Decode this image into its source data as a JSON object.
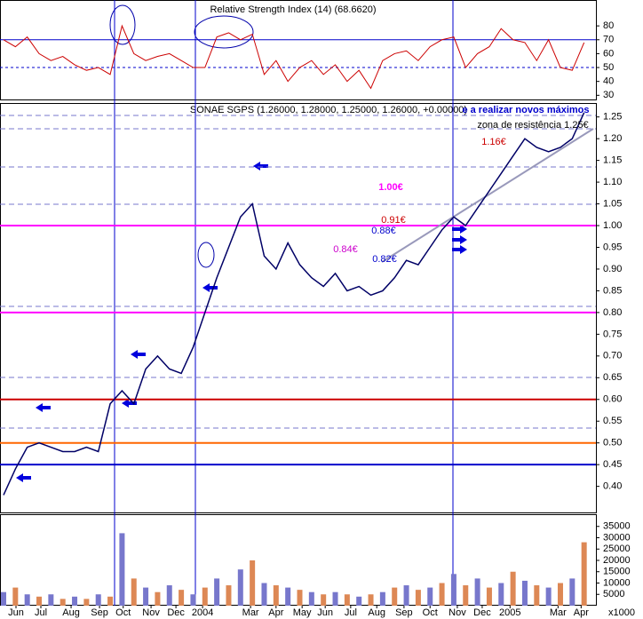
{
  "chart_data": {
    "type": "stock-panels",
    "title": "SONAE SGPS (1.26000, 1.28000, 1.25000, 1.26000, +0.00000)",
    "rsi_title": "Relative Strength Index (14) (68.6620)",
    "volume_unit": "x1000",
    "x": [
      0,
      2,
      4,
      6,
      8,
      10,
      12,
      14,
      16,
      18,
      20,
      22,
      24,
      26,
      28,
      30,
      32,
      34,
      36,
      38,
      40,
      42,
      44,
      46,
      48,
      50,
      52,
      54,
      56,
      58,
      60,
      62,
      64,
      66,
      68,
      70,
      72,
      74,
      76,
      78,
      80,
      82,
      84,
      86,
      88,
      90,
      92,
      94,
      96,
      98
    ],
    "xlim": [
      0,
      100
    ],
    "xticks": [
      {
        "value": 2.1,
        "label": "Jun"
      },
      {
        "value": 6.3,
        "label": "Jul"
      },
      {
        "value": 11.4,
        "label": "Aug"
      },
      {
        "value": 16.2,
        "label": "Sep"
      },
      {
        "value": 20.2,
        "label": "Oct"
      },
      {
        "value": 24.9,
        "label": "Nov"
      },
      {
        "value": 29.1,
        "label": "Dec"
      },
      {
        "value": 33.6,
        "label": "2004"
      },
      {
        "value": 41.7,
        "label": "Mar"
      },
      {
        "value": 46,
        "label": "Apr"
      },
      {
        "value": 50.4,
        "label": "May"
      },
      {
        "value": 54.3,
        "label": "Jun"
      },
      {
        "value": 58.6,
        "label": "Jul"
      },
      {
        "value": 63,
        "label": "Aug"
      },
      {
        "value": 67.6,
        "label": "Sep"
      },
      {
        "value": 72,
        "label": "Oct"
      },
      {
        "value": 76.6,
        "label": "Nov"
      },
      {
        "value": 80.8,
        "label": "Dec"
      },
      {
        "value": 85.5,
        "label": "2005"
      },
      {
        "value": 93.6,
        "label": "Mar"
      },
      {
        "value": 97.5,
        "label": "Apr"
      }
    ],
    "rsi": {
      "color": "#cc0000",
      "values": [
        70,
        65,
        72,
        60,
        55,
        58,
        52,
        48,
        50,
        45,
        80,
        60,
        55,
        58,
        60,
        55,
        50,
        50,
        72,
        75,
        70,
        74,
        45,
        55,
        40,
        50,
        55,
        45,
        52,
        40,
        48,
        35,
        55,
        60,
        62,
        55,
        65,
        70,
        72,
        50,
        60,
        65,
        78,
        70,
        68,
        55,
        70,
        50,
        48,
        68
      ],
      "ylim": [
        27,
        98
      ],
      "yticks": [
        30,
        40,
        50,
        60,
        70,
        80
      ],
      "levels": [
        70,
        50
      ]
    },
    "price": {
      "color": "#000066",
      "values": [
        0.38,
        0.44,
        0.49,
        0.5,
        0.49,
        0.48,
        0.48,
        0.49,
        0.48,
        0.59,
        0.62,
        0.59,
        0.67,
        0.7,
        0.67,
        0.66,
        0.72,
        0.8,
        0.88,
        0.95,
        1.02,
        1.05,
        0.93,
        0.9,
        0.96,
        0.91,
        0.88,
        0.86,
        0.89,
        0.85,
        0.86,
        0.84,
        0.85,
        0.88,
        0.92,
        0.91,
        0.95,
        0.99,
        1.02,
        1.0,
        1.04,
        1.08,
        1.12,
        1.16,
        1.2,
        1.18,
        1.17,
        1.18,
        1.2,
        1.26
      ],
      "ylim": [
        0.34,
        1.28
      ],
      "yticks": [
        1.25,
        {
          "value": 1.2,
          "label": "1.20"
        },
        1.15,
        {
          "value": 1.1,
          "label": "1.10"
        },
        1.05,
        {
          "value": 1,
          "label": "1.00"
        },
        0.95,
        {
          "value": 0.9,
          "label": "0.90"
        },
        0.85,
        {
          "value": 0.8,
          "label": "0.80"
        },
        0.75,
        {
          "value": 0.7,
          "label": "0.70"
        },
        0.65,
        {
          "value": 0.6,
          "label": "0.60"
        },
        0.55,
        {
          "value": 0.5,
          "label": "0.50"
        },
        0.45,
        {
          "value": 0.4,
          "label": "0.40"
        }
      ],
      "levels": [
        {
          "value": 1.0,
          "color": "#ff00ff"
        },
        {
          "value": 0.8,
          "color": "#ff00ff"
        },
        {
          "value": 0.45,
          "color": "#0000cc"
        },
        {
          "value": 0.5,
          "color": "#ff6600"
        },
        {
          "value": 0.6,
          "color": "#cc0000"
        }
      ],
      "annotations": [
        "e a realizar novos máximos",
        "zona de resistência 1.25€",
        "1.16€",
        "1.00€",
        "0.91€",
        "0.88€",
        "0.84€",
        "0.82€"
      ]
    },
    "volume": {
      "color": "#7777cc",
      "values": [
        6000,
        8000,
        5000,
        4000,
        5000,
        3000,
        4000,
        3000,
        5000,
        4000,
        32000,
        12000,
        8000,
        6000,
        9000,
        7000,
        5000,
        8000,
        12000,
        9000,
        16000,
        20000,
        10000,
        9000,
        8000,
        7000,
        6000,
        5000,
        6000,
        5000,
        4000,
        5000,
        6000,
        8000,
        9000,
        7000,
        8000,
        10000,
        14000,
        9000,
        12000,
        8000,
        10000,
        15000,
        11000,
        9000,
        8000,
        10000,
        12000,
        28000
      ],
      "ylim": [
        0,
        40000
      ],
      "yticks": [
        35000,
        30000,
        25000,
        20000,
        15000,
        10000,
        5000
      ]
    }
  }
}
